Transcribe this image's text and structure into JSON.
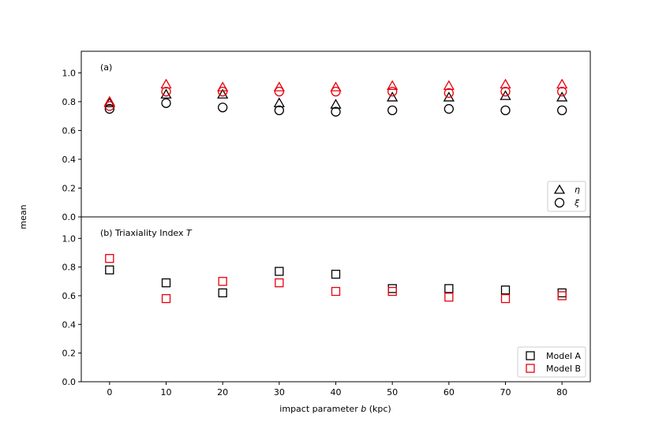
{
  "chart_data": [
    {
      "type": "scatter",
      "panel_label": "(a)",
      "ylim": [
        0,
        1.15
      ],
      "yticks": [
        "0.0",
        "0.2",
        "0.4",
        "0.6",
        "0.8",
        "1.0"
      ],
      "x": [
        0,
        10,
        20,
        30,
        40,
        50,
        60,
        70,
        80
      ],
      "series": [
        {
          "model": "A",
          "name": "η",
          "marker": "triangle",
          "color": "#000000",
          "values": [
            0.79,
            0.85,
            0.85,
            0.79,
            0.78,
            0.83,
            0.83,
            0.84,
            0.83
          ]
        },
        {
          "model": "B",
          "marker": "triangle",
          "color": "#e8000b",
          "values": [
            0.8,
            0.92,
            0.9,
            0.9,
            0.9,
            0.91,
            0.91,
            0.92,
            0.92
          ]
        },
        {
          "model": "A",
          "name": "ξ",
          "marker": "circle",
          "color": "#000000",
          "values": [
            0.75,
            0.79,
            0.76,
            0.74,
            0.73,
            0.74,
            0.75,
            0.74,
            0.74
          ]
        },
        {
          "model": "B",
          "marker": "circle",
          "color": "#e8000b",
          "values": [
            0.77,
            0.87,
            0.87,
            0.87,
            0.87,
            0.87,
            0.86,
            0.87,
            0.87
          ]
        }
      ],
      "legend_position": "lower-right"
    },
    {
      "type": "scatter",
      "panel_label_prefix": "(b) Triaxiality Index ",
      "panel_label_symbol": "T",
      "ylim": [
        0,
        1.15
      ],
      "yticks": [
        "0.0",
        "0.2",
        "0.4",
        "0.6",
        "0.8",
        "1.0"
      ],
      "x": [
        0,
        10,
        20,
        30,
        40,
        50,
        60,
        70,
        80
      ],
      "series": [
        {
          "name": "Model A",
          "marker": "square",
          "color": "#000000",
          "values": [
            0.78,
            0.69,
            0.62,
            0.77,
            0.75,
            0.65,
            0.65,
            0.64,
            0.62
          ]
        },
        {
          "name": "Model B",
          "marker": "square",
          "color": "#e8000b",
          "values": [
            0.86,
            0.58,
            0.7,
            0.69,
            0.63,
            0.63,
            0.59,
            0.58,
            0.6
          ]
        }
      ],
      "legend_position": "lower-right"
    }
  ],
  "axes": {
    "xlim": [
      -5,
      85
    ],
    "xticks": [
      0,
      10,
      20,
      30,
      40,
      50,
      60,
      70,
      80
    ],
    "xlabel_prefix": "impact parameter ",
    "xlabel_symbol": "b",
    "xlabel_suffix": " (kpc)",
    "ylabel": "mean"
  }
}
